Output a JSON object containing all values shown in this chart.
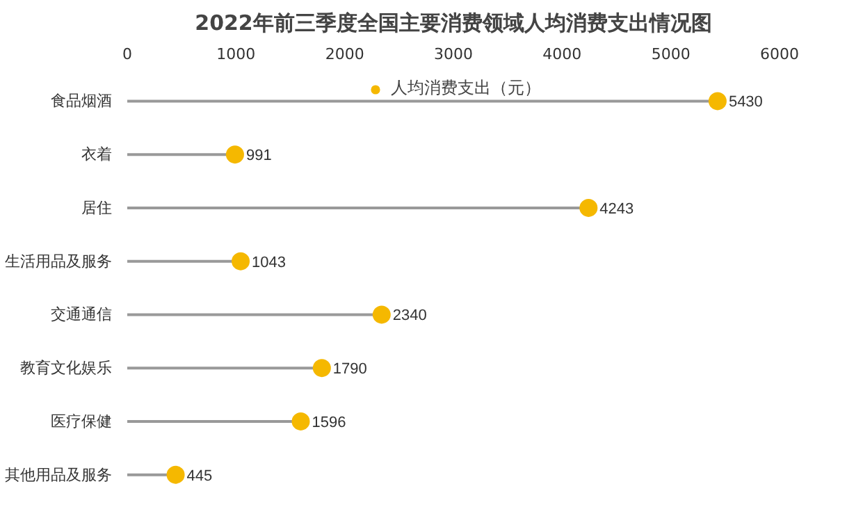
{
  "chart_data": {
    "type": "lollipop",
    "orientation": "horizontal",
    "title": "2022年前三季度全国主要消费领域人均消费支出情况图",
    "categories": [
      "食品烟酒",
      "衣着",
      "居住",
      "生活用品及服务",
      "交通通信",
      "教育文化娱乐",
      "医疗保健",
      "其他用品及服务"
    ],
    "series": [
      {
        "name": "人均消费支出（元）",
        "color": "#f5b800",
        "values": [
          5430,
          991,
          4243,
          1043,
          2340,
          1790,
          1596,
          445
        ]
      }
    ],
    "xlim": [
      0,
      6000
    ],
    "xticks": [
      0,
      1000,
      2000,
      3000,
      4000,
      5000,
      6000
    ],
    "data_labels": true,
    "legend": "top",
    "marker": "circle",
    "grid": false
  }
}
